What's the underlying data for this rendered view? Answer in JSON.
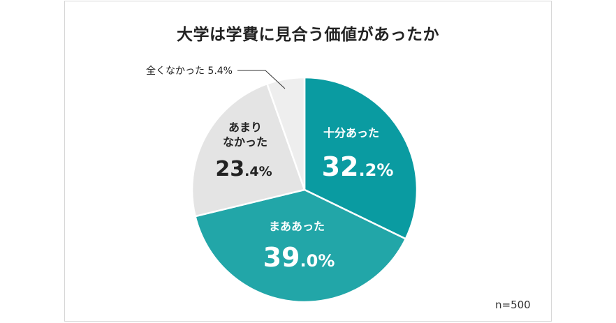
{
  "chart_data": {
    "type": "pie",
    "title": "大学は学費に見合う価値があったか",
    "note": "n=500",
    "slices": [
      {
        "label": "十分あった",
        "value": 32.2,
        "int": "32",
        "dec": ".2%",
        "color": "#0a9ba1",
        "text_color": "#ffffff"
      },
      {
        "label": "まああった",
        "value": 39.0,
        "int": "39",
        "dec": ".0%",
        "color": "#22a6a8",
        "text_color": "#ffffff"
      },
      {
        "label_lines": [
          "あまり",
          "なかった"
        ],
        "value": 23.4,
        "int": "23",
        "dec": ".4%",
        "color": "#e4e4e4",
        "text_color": "#222222"
      },
      {
        "label": "全くなかった 5.4%",
        "value": 5.4,
        "color": "#eeeeee",
        "text_color": "#222222"
      }
    ]
  }
}
